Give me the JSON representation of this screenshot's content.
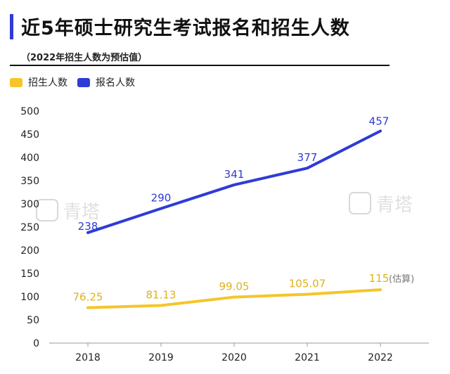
{
  "header": {
    "title": "近5年硕士研究生考试报名和招生人数",
    "subtitle": "（2022年招生人数为预估值）"
  },
  "watermark": {
    "text": "青塔"
  },
  "colors": {
    "accent": "#2f3bd6",
    "enrollment": "#f5c529",
    "applicants": "#2f3bd6"
  },
  "chart_data": {
    "type": "line",
    "categories": [
      "2018",
      "2019",
      "2020",
      "2021",
      "2022"
    ],
    "ylim": [
      0,
      500
    ],
    "yticks": [
      0,
      50,
      100,
      150,
      200,
      250,
      300,
      350,
      400,
      450,
      500
    ],
    "grid": false,
    "legend_position": "top-left",
    "series": [
      {
        "name": "招生人数",
        "color": "#f5c529",
        "values": [
          76.25,
          81.13,
          99.05,
          105.07,
          115
        ],
        "labels": [
          "76.25",
          "81.13",
          "99.05",
          "105.07",
          "115"
        ]
      },
      {
        "name": "报名人数",
        "color": "#2f3bd6",
        "values": [
          238,
          290,
          341,
          377,
          457
        ],
        "labels": [
          "238",
          "290",
          "341",
          "377",
          "457"
        ]
      }
    ],
    "annotations": [
      {
        "series": 0,
        "index": 4,
        "text": "(估算)"
      }
    ]
  }
}
